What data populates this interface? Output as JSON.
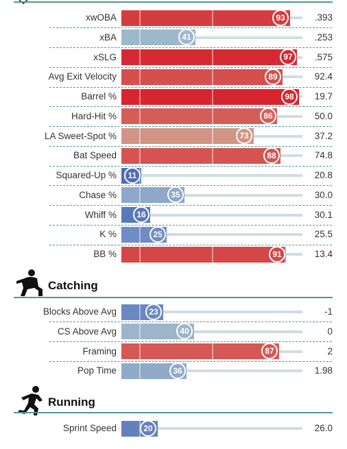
{
  "colors": {
    "accent": "#4d9898",
    "track": "#cfdde2"
  },
  "chart_data": {
    "type": "bar",
    "orientation": "horizontal",
    "scale": "percentile",
    "xlim": [
      0,
      100
    ],
    "sections": [
      {
        "title": "",
        "icon": "batter-icon",
        "metrics": [
          {
            "name": "xwOBA",
            "percentile": 93,
            "value": ".393"
          },
          {
            "name": "xBA",
            "percentile": 41,
            "value": ".253"
          },
          {
            "name": "xSLG",
            "percentile": 97,
            "value": ".575"
          },
          {
            "name": "Avg Exit Velocity",
            "percentile": 89,
            "value": "92.4"
          },
          {
            "name": "Barrel %",
            "percentile": 98,
            "value": "19.7"
          },
          {
            "name": "Hard-Hit %",
            "percentile": 86,
            "value": "50.0"
          },
          {
            "name": "LA Sweet-Spot %",
            "percentile": 73,
            "value": "37.2"
          },
          {
            "name": "Bat Speed",
            "percentile": 88,
            "value": "74.8"
          },
          {
            "name": "Squared-Up %",
            "percentile": 11,
            "value": "20.8"
          },
          {
            "name": "Chase %",
            "percentile": 35,
            "value": "30.0"
          },
          {
            "name": "Whiff %",
            "percentile": 16,
            "value": "30.1"
          },
          {
            "name": "K %",
            "percentile": 25,
            "value": "25.5"
          },
          {
            "name": "BB %",
            "percentile": 91,
            "value": "13.4"
          }
        ]
      },
      {
        "title": "Catching",
        "icon": "catcher-icon",
        "metrics": [
          {
            "name": "Blocks Above Avg",
            "percentile": 23,
            "value": "-1"
          },
          {
            "name": "CS Above Avg",
            "percentile": 40,
            "value": "0"
          },
          {
            "name": "Framing",
            "percentile": 87,
            "value": "2"
          },
          {
            "name": "Pop Time",
            "percentile": 36,
            "value": "1.98"
          }
        ]
      },
      {
        "title": "Running",
        "icon": "runner-icon",
        "metrics": [
          {
            "name": "Sprint Speed",
            "percentile": 20,
            "value": "26.0"
          }
        ]
      }
    ]
  }
}
